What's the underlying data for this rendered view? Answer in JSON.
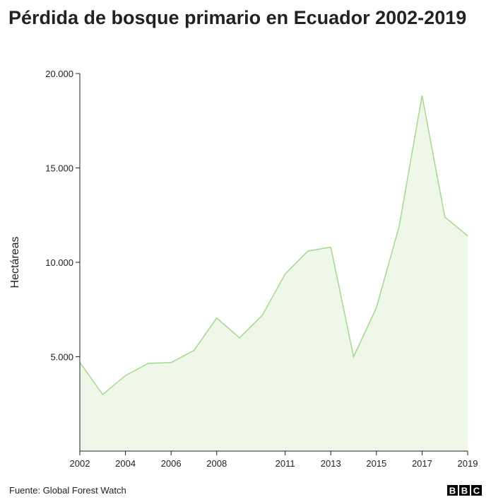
{
  "chart_data": {
    "type": "area",
    "title": "Pérdida de bosque primario en Ecuador 2002-2019",
    "y_label": "Hectáreas",
    "source": "Fuente: Global Forest Watch",
    "logo": [
      "B",
      "B",
      "C"
    ],
    "x": [
      2002,
      2003,
      2004,
      2005,
      2006,
      2007,
      2008,
      2009,
      2010,
      2011,
      2012,
      2013,
      2014,
      2015,
      2016,
      2017,
      2018,
      2019
    ],
    "series": [
      {
        "color": "#a3d98f",
        "fill": "#eef7e8",
        "values": [
          4700,
          3000,
          4000,
          4650,
          4690,
          5330,
          7050,
          6000,
          7200,
          9380,
          10600,
          10800,
          5000,
          7600,
          11930,
          18830,
          12400,
          11400
        ]
      }
    ],
    "xlim": [
      2002,
      2019
    ],
    "xticks": [
      2002,
      2004,
      2006,
      2008,
      2011,
      2013,
      2015,
      2017,
      2019
    ],
    "ylim": [
      0,
      20000
    ],
    "yticks": [
      {
        "value": 5000,
        "label": "5.000"
      },
      {
        "value": 10000,
        "label": "10.000"
      },
      {
        "value": 15000,
        "label": "15.000"
      },
      {
        "value": 20000,
        "label": "20.000"
      }
    ]
  }
}
